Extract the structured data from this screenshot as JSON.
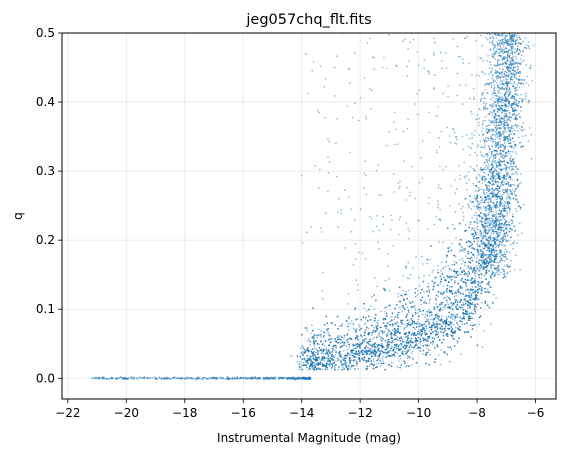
{
  "chart_data": {
    "type": "scatter",
    "title": "jeg057chq_flt.fits",
    "xlabel": "Instrumental Magnitude (mag)",
    "ylabel": "q",
    "xlim": [
      -22.2,
      -5.3
    ],
    "ylim": [
      -0.03,
      0.5
    ],
    "xticks": [
      -22,
      -20,
      -18,
      -16,
      -14,
      -12,
      -10,
      -8,
      -6
    ],
    "xtick_labels": [
      "−22",
      "−20",
      "−18",
      "−16",
      "−14",
      "−12",
      "−10",
      "−8",
      "−6"
    ],
    "yticks": [
      0.0,
      0.1,
      0.2,
      0.3,
      0.4,
      0.5
    ],
    "ytick_labels": [
      "0.0",
      "0.1",
      "0.2",
      "0.3",
      "0.4",
      "0.5"
    ],
    "grid": true,
    "marker_color": "#1f77b4",
    "description_of_density": "dense point cloud; saturated stars at q≈0 for mag -21.2 to -13.7; main locus rising from q≈0.02 at mag -14 to q≈0.5 near mag -7",
    "series": [
      {
        "values_ridge": {
          "x": [
            -14.0,
            -13.0,
            -12.0,
            -11.0,
            -10.0,
            -9.0,
            -8.5,
            -8.0,
            -7.5,
            -7.2,
            -7.0,
            -6.8
          ],
          "y": [
            0.025,
            0.032,
            0.04,
            0.05,
            0.065,
            0.09,
            0.11,
            0.15,
            0.21,
            0.27,
            0.33,
            0.45
          ]
        },
        "saturated_floor": {
          "x_range": [
            -21.2,
            -13.7
          ],
          "y": 0.0
        }
      }
    ]
  }
}
